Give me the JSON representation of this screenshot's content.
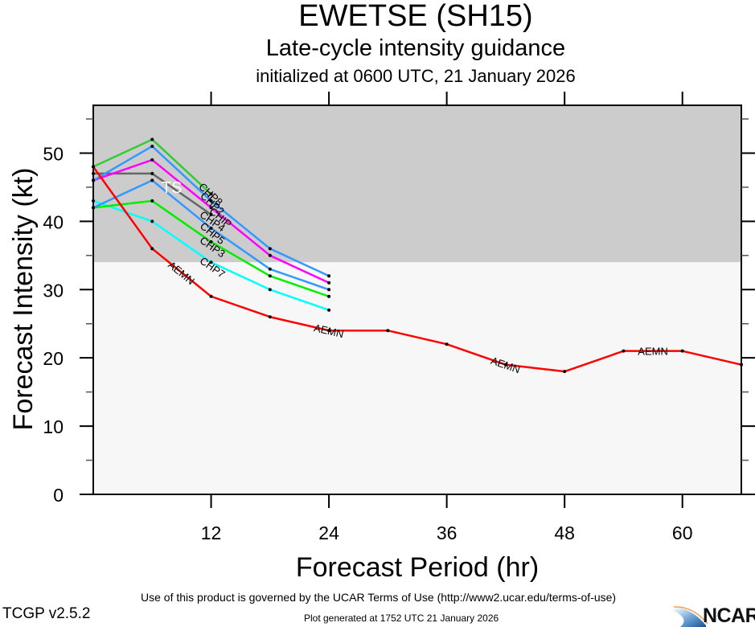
{
  "header": {
    "storm": "EWETSE (SH15)",
    "subtitle": "Late-cycle intensity guidance",
    "init": "initialized at 0600 UTC, 21 January 2026"
  },
  "footer": {
    "terms": "Use of this product is governed by the UCAR Terms of Use (http://www2.ucar.edu/terms-of-use)",
    "version": "TCGP v2.5.2",
    "generated": "Plot generated at 1752 UTC   21 January 2026",
    "logo_text": "NCAR"
  },
  "chart_data": {
    "type": "line",
    "title": "Late-cycle intensity guidance",
    "xlabel": "Forecast Period (hr)",
    "ylabel": "Forecast Intensity (kt)",
    "xlim": [
      0,
      66
    ],
    "ylim": [
      0,
      57
    ],
    "xticks": [
      12,
      24,
      36,
      48,
      60
    ],
    "xminor": [
      0,
      6,
      18,
      30,
      42,
      54,
      66
    ],
    "yticks": [
      0,
      10,
      20,
      30,
      40,
      50
    ],
    "yminor": [
      5,
      15,
      25,
      35,
      45,
      55
    ],
    "grid": false,
    "legend": "none (inline line labels)",
    "shaded_regions": [
      {
        "label": "TS",
        "from": 34,
        "to": 57,
        "color": "#cccccc"
      },
      {
        "label": "",
        "from": 0,
        "to": 34,
        "color": "#f7f7f7"
      }
    ],
    "series": [
      {
        "name": "AEMN",
        "color": "#ff0000",
        "x": [
          0,
          6,
          12,
          18,
          24,
          30,
          36,
          42,
          48,
          54,
          60,
          66
        ],
        "values": [
          48,
          36,
          29,
          26,
          24,
          24,
          22,
          19,
          18,
          21,
          21,
          19
        ],
        "labels_at": [
          9,
          24,
          42,
          57
        ]
      },
      {
        "name": "CHP8",
        "color": "#33cc33",
        "x": [
          0,
          6,
          12
        ],
        "values": [
          48,
          52,
          44
        ],
        "labels_at": [
          12
        ]
      },
      {
        "name": "CHP2",
        "color": "#3399ff",
        "x": [
          0,
          6,
          12,
          18,
          24
        ],
        "values": [
          46,
          51,
          43,
          36,
          32
        ],
        "labels_at": [
          12
        ]
      },
      {
        "name": "CHIP",
        "color": "#ff00ff",
        "x": [
          0,
          6,
          12,
          18,
          24
        ],
        "values": [
          46,
          49,
          42,
          35,
          31
        ],
        "labels_at": [
          13
        ]
      },
      {
        "name": "CHP4",
        "color": "#666666",
        "x": [
          0,
          6,
          12
        ],
        "values": [
          47,
          47,
          41
        ],
        "labels_at": [
          12
        ]
      },
      {
        "name": "CHP5",
        "color": "#3399ff",
        "x": [
          0,
          6,
          12,
          18,
          24
        ],
        "values": [
          42,
          46,
          39,
          33,
          30
        ],
        "labels_at": [
          12
        ]
      },
      {
        "name": "CHP3",
        "color": "#00ee00",
        "x": [
          0,
          6,
          12,
          18,
          24
        ],
        "values": [
          42,
          43,
          37,
          32,
          29
        ],
        "labels_at": [
          12
        ]
      },
      {
        "name": "CHP7",
        "color": "#00ffff",
        "x": [
          0,
          6,
          12,
          18,
          24
        ],
        "values": [
          43,
          40,
          34,
          30,
          27
        ],
        "labels_at": [
          12
        ]
      }
    ],
    "annotations": [
      {
        "text": "TS",
        "x": 8,
        "y": 45,
        "color": "#ffffff"
      }
    ]
  }
}
